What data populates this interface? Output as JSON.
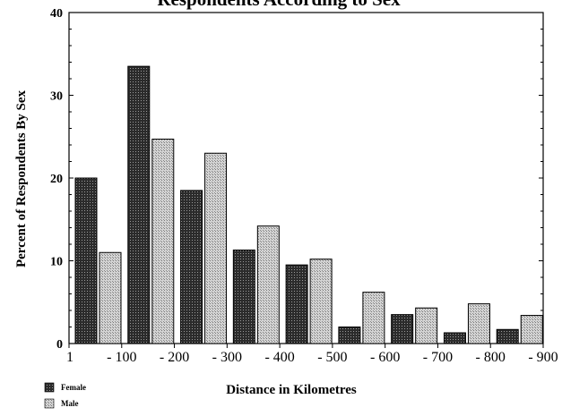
{
  "chart_data": {
    "type": "bar",
    "title": "Respondents According to Sex",
    "xlabel": "Distance in Kilometres",
    "ylabel": "Percent of Respondents By Sex",
    "ylim": [
      0,
      40
    ],
    "yticks": [
      "0",
      "10",
      "20",
      "30",
      "40"
    ],
    "xticks": [
      "1",
      "- 100",
      "- 200",
      "- 300",
      "- 400",
      "- 500",
      "- 600",
      "- 700",
      "- 800",
      "- 900"
    ],
    "categories": [
      "1 - 100",
      "100 - 200",
      "200 - 300",
      "300 - 400",
      "400 - 500",
      "500 - 600",
      "600 - 700",
      "700 - 800",
      "800 - 900"
    ],
    "series": [
      {
        "name": "Female",
        "values": [
          20,
          33.5,
          18.5,
          11.3,
          9.5,
          2,
          3.5,
          1.3,
          1.7
        ]
      },
      {
        "name": "Male",
        "values": [
          11,
          24.7,
          23,
          14.2,
          10.2,
          6.2,
          4.3,
          4.8,
          3.4
        ]
      }
    ],
    "grid": false,
    "legend": "bottom-left",
    "colors": {
      "female": "#3a3a3a",
      "male": "#bdbdbd"
    }
  }
}
